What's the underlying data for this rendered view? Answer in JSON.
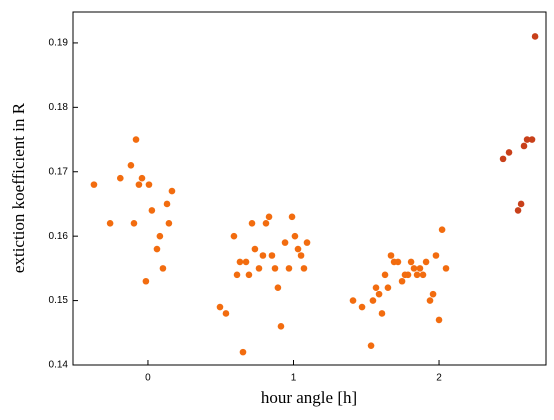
{
  "chart_data": {
    "type": "scatter",
    "x_label": "hour angle [h]",
    "y_label": "extiction koefficient in R",
    "xlim": [
      -0.515,
      2.735
    ],
    "ylim": [
      0.14,
      0.1948
    ],
    "xticks": [
      0,
      1,
      2
    ],
    "yticks": [
      0.14,
      0.15,
      0.16,
      0.17,
      0.18,
      0.19
    ],
    "grid": false,
    "series": [
      {
        "color": "#f26c0f",
        "x": [
          -0.371,
          -0.26,
          -0.19,
          -0.117,
          -0.096,
          -0.082,
          -0.062,
          -0.041,
          -0.014,
          0.007,
          0.027,
          0.062,
          0.082,
          0.103,
          0.131,
          0.144,
          0.165,
          0.495,
          0.536,
          0.591,
          0.612,
          0.632,
          0.653,
          0.674,
          0.694,
          0.715,
          0.735,
          0.763,
          0.79,
          0.811,
          0.832,
          0.852,
          0.873,
          0.893,
          0.914,
          0.942,
          0.969,
          0.99,
          1.01,
          1.031,
          1.052,
          1.072,
          1.093,
          1.409,
          1.471,
          1.533,
          1.546,
          1.567,
          1.588,
          1.608,
          1.629,
          1.649,
          1.67,
          1.691,
          1.718,
          1.746,
          1.766,
          1.787,
          1.808,
          1.828,
          1.849,
          1.869,
          1.89,
          1.911,
          1.938,
          1.959,
          1.979,
          2.0,
          2.021,
          2.048
        ],
        "values": [
          0.168,
          0.162,
          0.169,
          0.171,
          0.162,
          0.175,
          0.168,
          0.169,
          0.153,
          0.168,
          0.164,
          0.158,
          0.16,
          0.155,
          0.165,
          0.162,
          0.167,
          0.149,
          0.148,
          0.16,
          0.154,
          0.156,
          0.142,
          0.156,
          0.154,
          0.162,
          0.158,
          0.155,
          0.157,
          0.162,
          0.163,
          0.157,
          0.155,
          0.152,
          0.146,
          0.159,
          0.155,
          0.163,
          0.16,
          0.158,
          0.157,
          0.155,
          0.159,
          0.15,
          0.149,
          0.143,
          0.15,
          0.152,
          0.151,
          0.148,
          0.154,
          0.152,
          0.157,
          0.156,
          0.156,
          0.153,
          0.154,
          0.154,
          0.156,
          0.155,
          0.154,
          0.155,
          0.154,
          0.156,
          0.15,
          0.151,
          0.157,
          0.147,
          0.161,
          0.155
        ]
      },
      {
        "color": "#c8401a",
        "x": [
          2.44,
          2.481,
          2.543,
          2.564,
          2.584,
          2.605,
          2.639,
          2.66
        ],
        "values": [
          0.172,
          0.173,
          0.164,
          0.165,
          0.174,
          0.175,
          0.175,
          0.191
        ]
      }
    ]
  }
}
